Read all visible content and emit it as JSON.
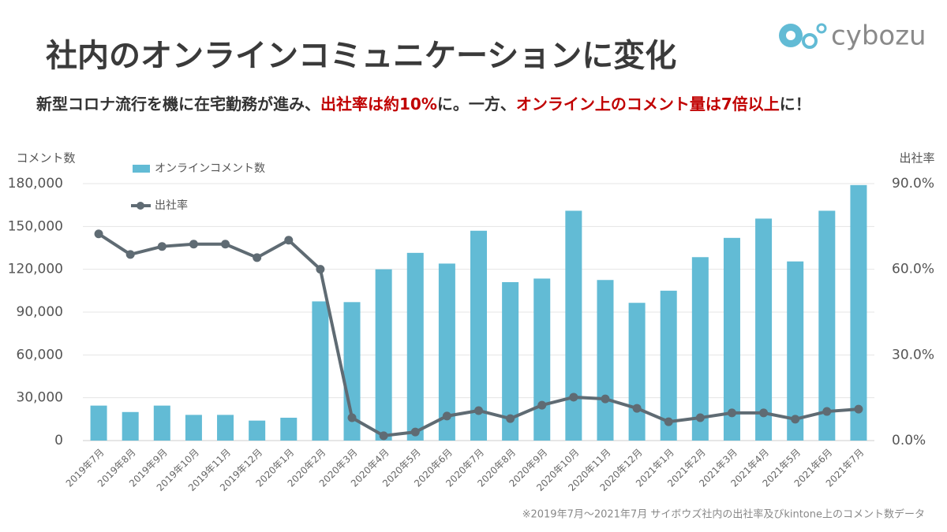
{
  "chart_data": {
    "type": "bar_line",
    "title": "社内のオンラインコミュニケーションに変化",
    "subtitle": [
      {
        "text": "新型コロナ流行を機に在宅勤務が進み、",
        "color": "#333333"
      },
      {
        "text": "出社率は約10%",
        "color": "#c00000"
      },
      {
        "text": "に。一方、",
        "color": "#333333"
      },
      {
        "text": "オンライン上のコメント量は7倍以上",
        "color": "#c00000"
      },
      {
        "text": "に！",
        "color": "#333333"
      }
    ],
    "logo": "cybozu",
    "y_axis_title": "コメント数",
    "y2_axis_title": "出社率",
    "footnote": "※2019年7月～2021年7月 サイボウズ社内の出社率及びkintone上のコメント数データ",
    "categories": [
      "2019年7月",
      "2019年8月",
      "2019年9月",
      "2019年10月",
      "2019年11月",
      "2019年12月",
      "2020年1月",
      "2020年2月",
      "2020年3月",
      "2020年4月",
      "2020年5月",
      "2020年6月",
      "2020年7月",
      "2020年8月",
      "2020年9月",
      "2020年10月",
      "2020年11月",
      "2020年12月",
      "2021年1月",
      "2021年2月",
      "2021年3月",
      "2021年4月",
      "2021年5月",
      "2021年6月",
      "2021年7月"
    ],
    "series": [
      {
        "name": "オンラインコメント数",
        "type": "bar",
        "color": "#62bbd5",
        "values": [
          24500,
          20000,
          24500,
          18000,
          18000,
          14000,
          16000,
          97500,
          97000,
          120000,
          131500,
          124000,
          147000,
          111000,
          113500,
          161000,
          112500,
          96500,
          105000,
          128500,
          142000,
          155500,
          125500,
          161000,
          179000
        ]
      },
      {
        "name": "出社率",
        "type": "line",
        "axis": "y2",
        "color": "#5f6b73",
        "values": [
          72.4,
          65.2,
          68.0,
          68.8,
          68.8,
          64.1,
          70.2,
          60.0,
          8.0,
          1.7,
          3.0,
          8.6,
          10.5,
          7.7,
          12.4,
          15.2,
          14.6,
          11.3,
          6.6,
          8.0,
          9.7,
          9.7,
          7.5,
          10.2,
          11.0
        ]
      }
    ],
    "ylim": [
      0,
      180000
    ],
    "yticks": [
      0,
      {
        "value": 30000,
        "label": "30,000"
      },
      {
        "value": 60000,
        "label": "60,000"
      },
      {
        "value": 90000,
        "label": "90,000"
      },
      {
        "value": 120000,
        "label": "120,000"
      },
      {
        "value": 150000,
        "label": "150,000"
      },
      {
        "value": 180000,
        "label": "180,000"
      }
    ],
    "y2lim": [
      0,
      90
    ],
    "y2ticks": [
      {
        "value": 0,
        "label": "0.0%"
      },
      {
        "value": 30,
        "label": "30.0%"
      },
      {
        "value": 60,
        "label": "60.0%"
      },
      {
        "value": 90,
        "label": "90.0%"
      }
    ],
    "grid": true
  }
}
